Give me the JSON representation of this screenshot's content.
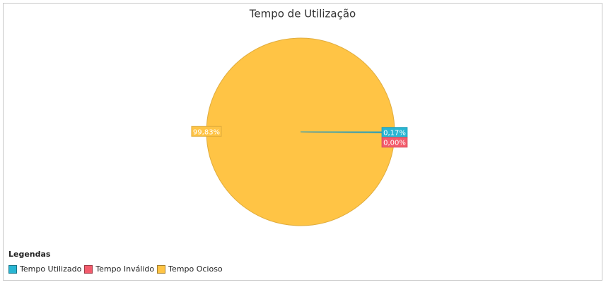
{
  "chart_data": {
    "type": "pie",
    "title": "Tempo de Utilização",
    "categories": [
      "Tempo Utilizado",
      "Tempo Inválido",
      "Tempo Ocioso"
    ],
    "values": [
      0.17,
      0.0,
      99.83
    ],
    "value_labels": [
      "0,17%",
      "0,00%",
      "99,83%"
    ],
    "colors": [
      "#29b6d3",
      "#f35b6c",
      "#ffc445"
    ],
    "legend_title": "Legendas",
    "legend": "bottom-left"
  }
}
